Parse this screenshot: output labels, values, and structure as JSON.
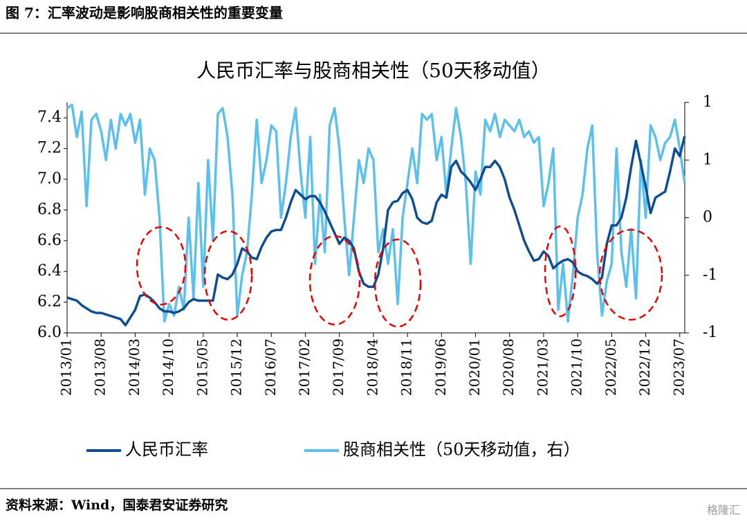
{
  "header": {
    "title": "图 7：汇率波动是影响股商相关性的重要变量"
  },
  "chart_data": {
    "type": "line",
    "title": "人民币汇率与股商相关性（50天移动值）",
    "categories": [
      "2013/01",
      null,
      null,
      null,
      null,
      null,
      null,
      "2013/08",
      null,
      null,
      null,
      null,
      null,
      null,
      "2014/03",
      null,
      null,
      null,
      null,
      null,
      null,
      "2014/10",
      null,
      null,
      null,
      null,
      null,
      null,
      "2015/05",
      null,
      null,
      null,
      null,
      null,
      null,
      "2015/12",
      null,
      null,
      null,
      null,
      null,
      null,
      "2016/07",
      null,
      null,
      null,
      null,
      null,
      null,
      "2017/02",
      null,
      null,
      null,
      null,
      null,
      null,
      "2017/09",
      null,
      null,
      null,
      null,
      null,
      null,
      "2018/04",
      null,
      null,
      null,
      null,
      null,
      null,
      "2018/11",
      null,
      null,
      null,
      null,
      null,
      null,
      "2019/06",
      null,
      null,
      null,
      null,
      null,
      null,
      "2020/01",
      null,
      null,
      null,
      null,
      null,
      null,
      "2020/08",
      null,
      null,
      null,
      null,
      null,
      null,
      "2021/03",
      null,
      null,
      null,
      null,
      null,
      null,
      "2021/10",
      null,
      null,
      null,
      null,
      null,
      null,
      "2022/05",
      null,
      null,
      null,
      null,
      null,
      null,
      "2022/12",
      null,
      null,
      null,
      null,
      null,
      null,
      "2023/07",
      null
    ],
    "series": [
      {
        "name": "人民币汇率",
        "color": "#0e4d92",
        "axis": "y",
        "values": [
          6.23,
          6.22,
          6.21,
          6.18,
          6.16,
          6.14,
          6.13,
          6.13,
          6.12,
          6.11,
          6.1,
          6.09,
          6.05,
          6.1,
          6.15,
          6.24,
          6.25,
          6.23,
          6.2,
          6.16,
          6.14,
          6.14,
          6.13,
          6.14,
          6.16,
          6.2,
          6.22,
          6.21,
          6.21,
          6.21,
          6.21,
          6.38,
          6.36,
          6.35,
          6.38,
          6.45,
          6.55,
          6.53,
          6.49,
          6.48,
          6.56,
          6.62,
          6.66,
          6.67,
          6.67,
          6.75,
          6.85,
          6.93,
          6.9,
          6.87,
          6.89,
          6.89,
          6.85,
          6.79,
          6.72,
          6.65,
          6.58,
          6.62,
          6.6,
          6.55,
          6.4,
          6.32,
          6.3,
          6.3,
          6.38,
          6.55,
          6.8,
          6.85,
          6.86,
          6.91,
          6.93,
          6.87,
          6.75,
          6.72,
          6.71,
          6.73,
          6.85,
          6.9,
          6.88,
          7.08,
          7.12,
          7.05,
          7.02,
          6.98,
          6.93,
          7.0,
          7.08,
          7.08,
          7.12,
          7.08,
          7.0,
          6.88,
          6.8,
          6.7,
          6.6,
          6.53,
          6.47,
          6.48,
          6.53,
          6.5,
          6.42,
          6.45,
          6.47,
          6.48,
          6.46,
          6.4,
          6.38,
          6.37,
          6.35,
          6.32,
          6.36,
          6.58,
          6.7,
          6.7,
          6.75,
          6.88,
          7.08,
          7.25,
          7.1,
          6.95,
          6.78,
          6.88,
          6.9,
          6.92,
          7.05,
          7.2,
          7.15,
          7.28
        ]
      },
      {
        "name": "股商相关性（50天移动值，右）",
        "color": "#5bc0eb",
        "axis": "y2",
        "values": [
          0.95,
          0.98,
          0.7,
          0.92,
          0.1,
          0.85,
          0.9,
          0.75,
          0.5,
          0.85,
          0.6,
          0.9,
          0.8,
          0.9,
          0.65,
          0.85,
          0.2,
          0.6,
          0.5,
          0.0,
          -0.9,
          -0.75,
          -0.85,
          -0.6,
          -0.8,
          0.0,
          -0.7,
          0.3,
          -0.6,
          0.5,
          -0.2,
          0.9,
          0.95,
          0.7,
          0.2,
          -0.85,
          -0.5,
          -0.3,
          0.2,
          0.85,
          0.3,
          0.5,
          0.8,
          0.75,
          0.0,
          0.3,
          0.7,
          0.95,
          0.4,
          0.0,
          0.7,
          -0.4,
          0.2,
          -0.3,
          0.8,
          0.95,
          0.6,
          0.0,
          -0.5,
          0.0,
          0.5,
          0.3,
          0.6,
          0.5,
          -0.3,
          -0.1,
          -0.4,
          -0.1,
          -0.75,
          0.0,
          0.3,
          0.6,
          0.3,
          0.9,
          0.85,
          0.9,
          0.5,
          0.7,
          0.2,
          0.6,
          0.95,
          0.7,
          0.3,
          -0.4,
          0.4,
          0.2,
          0.85,
          0.75,
          0.9,
          0.7,
          0.85,
          0.8,
          0.75,
          0.85,
          0.7,
          0.75,
          0.65,
          0.7,
          0.1,
          0.3,
          0.6,
          -0.8,
          -0.4,
          -0.9,
          -0.5,
          0.0,
          0.2,
          0.6,
          0.8,
          -0.3,
          -0.85,
          -0.55,
          -0.4,
          0.6,
          -0.3,
          -0.6,
          -0.1,
          -0.7,
          0.5,
          0.0,
          0.8,
          0.7,
          0.5,
          0.65,
          0.7,
          0.85,
          0.6,
          0.3
        ]
      }
    ],
    "ylim": [
      6.0,
      7.5
    ],
    "yticks": [
      {
        "value": 6.0,
        "label": "6.0"
      },
      6.2,
      6.4,
      6.6,
      6.8,
      {
        "value": 7.0,
        "label": "7.0"
      },
      7.2,
      7.4
    ],
    "y2lim": [
      -1,
      1
    ],
    "y2ticks": [
      {
        "value": -1,
        "label": "-1"
      },
      {
        "value": -0.5,
        "label": "-1"
      },
      0,
      {
        "value": 0.5,
        "label": "1"
      },
      {
        "value": 1,
        "label": "1"
      }
    ],
    "legend": "bottom",
    "source": "资料来源：Wind，国泰君安证券研究",
    "watermark": "格隆汇"
  }
}
